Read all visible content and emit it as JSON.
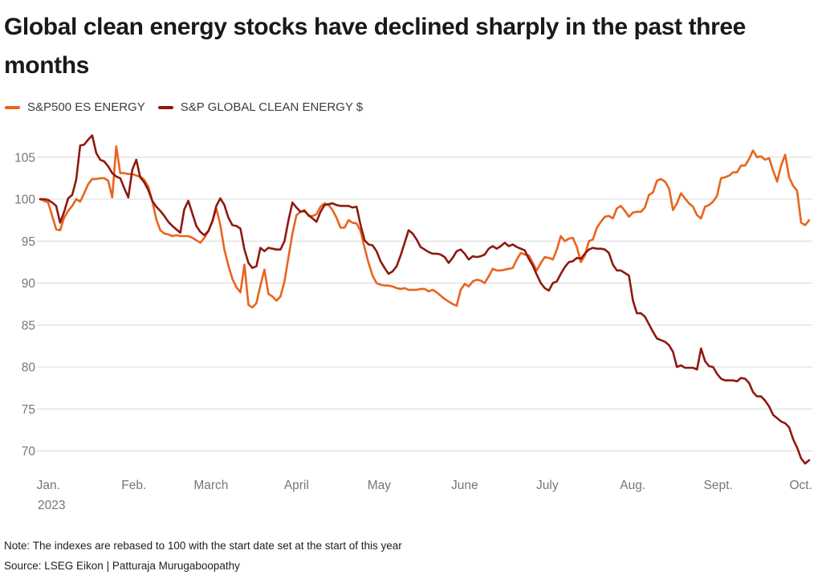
{
  "title": "Global clean energy stocks have declined sharply in the past three months",
  "legend": [
    {
      "label": "S&P500 ES ENERGY",
      "color": "#e8641e"
    },
    {
      "label": "S&P GLOBAL CLEAN ENERGY $",
      "color": "#8e190f"
    }
  ],
  "note": "Note: The indexes are rebased to 100 with the start date set at the start of this year",
  "source": "Source: LSEG Eikon | Patturaja Murugaboopathy",
  "chart_data": {
    "type": "line",
    "title": "Global clean energy stocks have declined sharply in the past three months",
    "grid": true,
    "legend_position": "top-left",
    "background": "#ffffff",
    "gridline_color": "#d8d8d8",
    "axis_text_color": "#767679",
    "x_axis": {
      "tick_labels": [
        "Jan.",
        "Feb.",
        "March",
        "April",
        "May",
        "June",
        "July",
        "Aug.",
        "Sept.",
        "Oct."
      ],
      "tick_days": [
        0,
        31,
        59,
        90,
        120,
        151,
        181,
        212,
        243,
        273
      ],
      "total_days": 279,
      "sub_label": "2023"
    },
    "y_axis": {
      "ticks": [
        105,
        100,
        95,
        90,
        85,
        80,
        75,
        70
      ],
      "range": [
        67.5,
        108.5
      ]
    },
    "series": [
      {
        "name": "S&P500 ES ENERGY",
        "color": "#e8641e",
        "values": [
          100,
          99.8,
          99.6,
          98,
          96.4,
          96.3,
          97.8,
          98.6,
          99.2,
          100,
          99.7,
          100.7,
          101.8,
          102.4,
          102.4,
          102.5,
          102.5,
          102.2,
          100.2,
          106.3,
          103.1,
          103.1,
          103,
          103,
          102.8,
          102.7,
          102.3,
          101.5,
          99.8,
          97.6,
          96.3,
          95.9,
          95.8,
          95.6,
          95.7,
          95.6,
          95.6,
          95.6,
          95.4,
          95.1,
          94.8,
          95.4,
          96.2,
          97.3,
          98.9,
          96.9,
          94,
          92.1,
          90.5,
          89.5,
          88.9,
          92.2,
          87.4,
          87.1,
          87.6,
          89.7,
          91.6,
          88.7,
          88.4,
          87.9,
          88.4,
          90.2,
          93.1,
          95.9,
          98.1,
          98.5,
          98.7,
          98,
          98,
          98.2,
          99.1,
          99.5,
          99.3,
          98.7,
          97.8,
          96.6,
          96.6,
          97.5,
          97.2,
          97.1,
          96.2,
          94.2,
          92.4,
          90.9,
          90,
          89.8,
          89.7,
          89.7,
          89.6,
          89.4,
          89.3,
          89.4,
          89.2,
          89.2,
          89.2,
          89.3,
          89.3,
          89,
          89.2,
          88.9,
          88.5,
          88.1,
          87.8,
          87.5,
          87.3,
          89.2,
          89.9,
          89.6,
          90.2,
          90.4,
          90.3,
          90,
          90.8,
          91.7,
          91.5,
          91.5,
          91.6,
          91.7,
          91.8,
          92.8,
          93.6,
          93.4,
          93.3,
          92.4,
          91.5,
          92.4,
          93.1,
          93,
          92.8,
          94,
          95.6,
          95,
          95.3,
          95.4,
          94.3,
          92.5,
          93.3,
          95,
          95.2,
          96.6,
          97.3,
          97.9,
          98,
          97.7,
          98.9,
          99.2,
          98.6,
          97.9,
          98.4,
          98.5,
          98.5,
          99,
          100.5,
          100.8,
          102.2,
          102.4,
          102.1,
          101.3,
          98.7,
          99.5,
          100.7,
          100.1,
          99.5,
          99.1,
          98.1,
          97.7,
          99.1,
          99.3,
          99.7,
          100.4,
          102.5,
          102.6,
          102.8,
          103.2,
          103.2,
          104,
          104,
          104.8,
          105.8,
          105,
          105.1,
          104.7,
          104.9,
          103.4,
          102.1,
          104,
          105.3,
          102.6,
          101.6,
          101,
          97.2,
          96.9,
          97.5
        ]
      },
      {
        "name": "S&P GLOBAL CLEAN ENERGY $",
        "color": "#8e190f",
        "values": [
          100,
          100,
          99.9,
          99.6,
          99.2,
          97.2,
          98.5,
          100.1,
          100.5,
          102.3,
          106.4,
          106.5,
          107.1,
          107.6,
          105.5,
          104.7,
          104.5,
          103.9,
          103.1,
          102.7,
          102.5,
          101.3,
          100.2,
          103.5,
          104.7,
          102.6,
          102,
          101.1,
          99.8,
          99.1,
          98.6,
          98,
          97.3,
          96.8,
          96.4,
          96,
          98.8,
          99.8,
          98.3,
          96.8,
          96.1,
          95.7,
          96.2,
          97.4,
          99.2,
          100.1,
          99.3,
          97.8,
          96.9,
          96.8,
          96.5,
          94,
          92.4,
          91.8,
          92,
          94.2,
          93.8,
          94.2,
          94.1,
          94,
          94,
          95,
          97.5,
          99.6,
          99,
          98.5,
          98.6,
          98.1,
          97.7,
          97.3,
          98.5,
          99.3,
          99.4,
          99.5,
          99.3,
          99.2,
          99.2,
          99.2,
          99,
          99.1,
          96.9,
          95.1,
          94.6,
          94.5,
          93.8,
          92.6,
          91.8,
          91.1,
          91.4,
          92,
          93.3,
          94.8,
          96.3,
          95.9,
          95.2,
          94.3,
          94,
          93.7,
          93.5,
          93.5,
          93.4,
          93.1,
          92.4,
          93,
          93.8,
          94,
          93.5,
          92.8,
          93.2,
          93.1,
          93.2,
          93.4,
          94.1,
          94.4,
          94.1,
          94.4,
          94.8,
          94.4,
          94.6,
          94.3,
          94.1,
          93.9,
          92.9,
          92.1,
          91,
          90,
          89.4,
          89.1,
          90,
          90.2,
          91.1,
          91.9,
          92.5,
          92.6,
          93,
          92.9,
          93.5,
          94,
          94.2,
          94.1,
          94.1,
          94,
          93.6,
          92.2,
          91.5,
          91.5,
          91.2,
          90.9,
          87.9,
          86.4,
          86.4,
          86,
          85.1,
          84.2,
          83.4,
          83.2,
          83,
          82.6,
          81.8,
          80,
          80.2,
          79.9,
          79.9,
          79.9,
          79.7,
          82.2,
          80.7,
          80.1,
          80,
          79.2,
          78.6,
          78.4,
          78.4,
          78.4,
          78.3,
          78.7,
          78.6,
          78.1,
          77,
          76.5,
          76.5,
          76,
          75.3,
          74.3,
          73.9,
          73.5,
          73.3,
          72.8,
          71.4,
          70.4,
          69.1,
          68.5,
          68.9
        ]
      }
    ]
  }
}
